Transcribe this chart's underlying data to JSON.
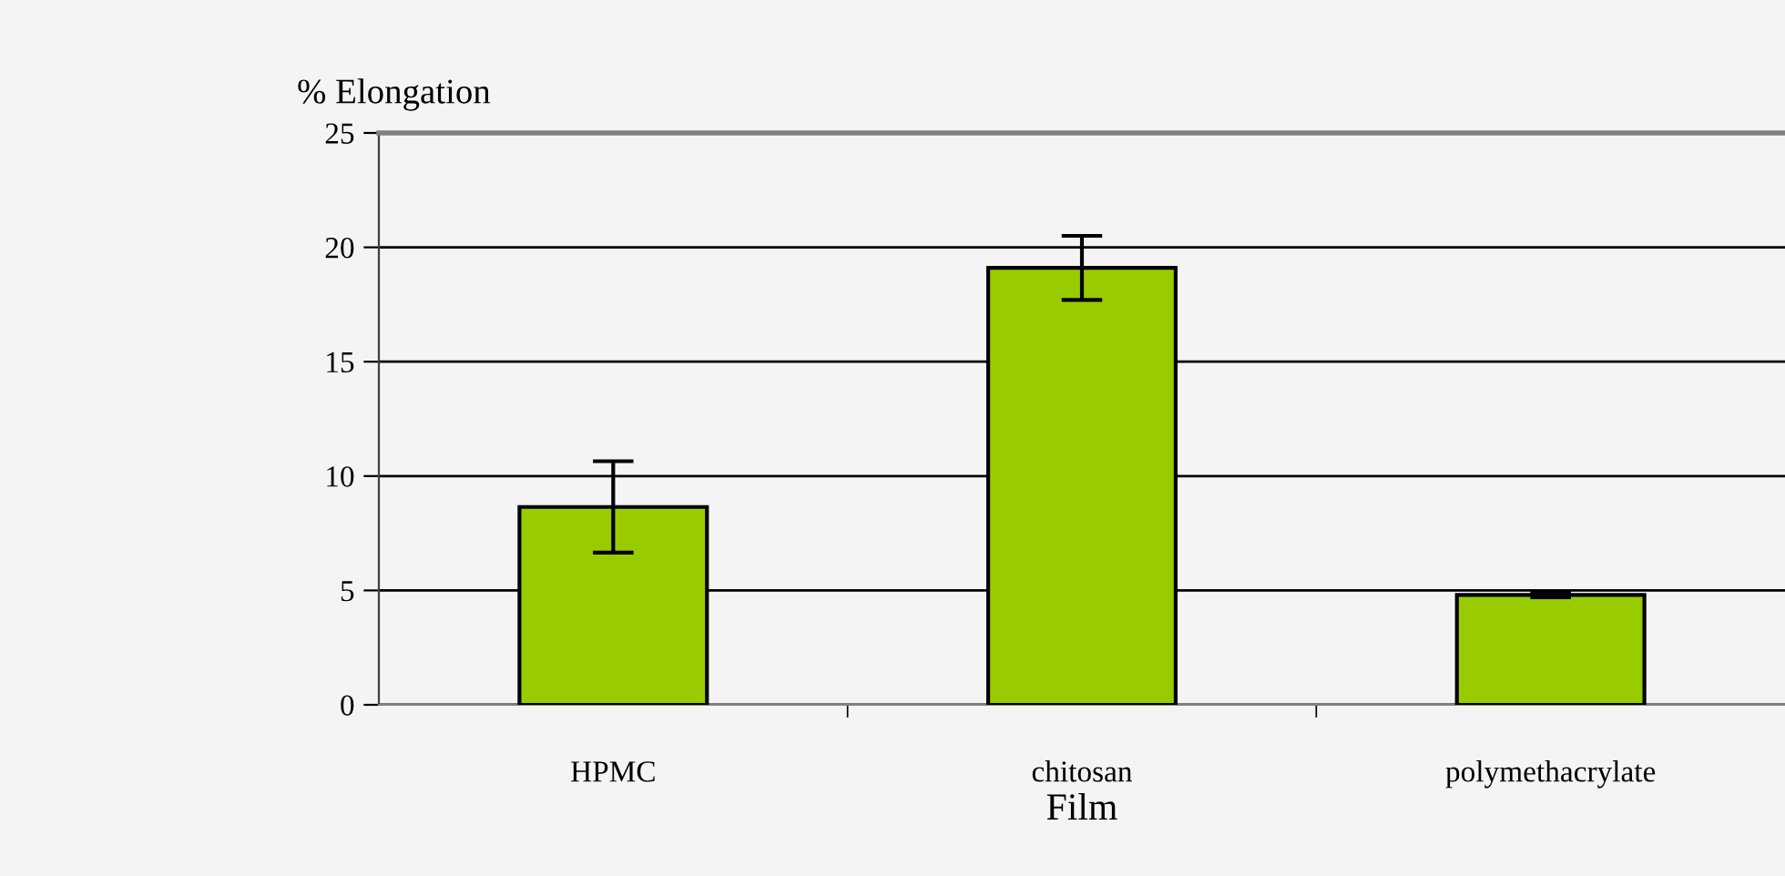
{
  "chart_data": {
    "type": "bar",
    "ylabel": "% Elongation",
    "xlabel": "Film",
    "categories": [
      "HPMC",
      "chitosan",
      "polymethacrylate"
    ],
    "values": [
      8.65,
      19.1,
      4.8
    ],
    "errors": [
      2.0,
      1.4,
      0.1
    ],
    "color": "#99cc00",
    "ylim": [
      0,
      25
    ],
    "yticks": [
      0,
      5,
      10,
      15,
      20,
      25
    ],
    "grid": "y"
  }
}
